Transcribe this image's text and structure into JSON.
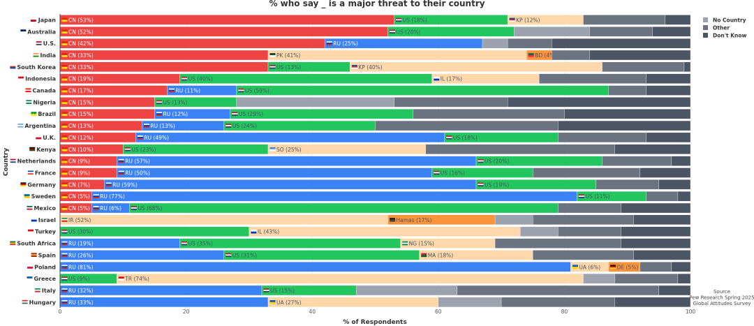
{
  "chart_data": {
    "type": "bar",
    "orientation": "horizontal",
    "stacked": true,
    "title": "% who say _ is a major threat to their country",
    "xlabel": "% of Respondents",
    "ylabel": "Country",
    "xlim": [
      0,
      100
    ],
    "x_ticks": [
      "0",
      "20",
      "40",
      "60",
      "80",
      "100"
    ],
    "grid": true,
    "legend": {
      "placement": "top-right",
      "entries": [
        {
          "name": "No Country",
          "color": "#9ca3af"
        },
        {
          "name": "Other",
          "color": "#6b7280"
        },
        {
          "name": "Don't Know",
          "color": "#4b5563"
        }
      ]
    },
    "threat_colors": {
      "CN": "#ef4444",
      "US": "#22c55e",
      "RU": "#3b82f6",
      "primary_other": "#fed7aa",
      "secondary_other": "#fb923c"
    },
    "rows": [
      {
        "country": "Japan",
        "flag": "jp",
        "segments": [
          {
            "label": "CN",
            "value": 53,
            "kind": "CN"
          },
          {
            "label": "US",
            "value": 18,
            "kind": "US"
          },
          {
            "label": "KP",
            "value": 12,
            "kind": "primary_other",
            "flag": "kp"
          },
          {
            "label": "Other",
            "value": 13,
            "kind": "other"
          },
          {
            "label": "Don't Know",
            "value": 4,
            "kind": "dk"
          }
        ]
      },
      {
        "country": "Australia",
        "flag": "au",
        "segments": [
          {
            "label": "CN",
            "value": 52,
            "kind": "CN"
          },
          {
            "label": "US",
            "value": 20,
            "kind": "US"
          },
          {
            "label": "No Country",
            "value": 12,
            "kind": "none"
          },
          {
            "label": "Other",
            "value": 10,
            "kind": "other"
          },
          {
            "label": "Don't Know",
            "value": 6,
            "kind": "dk"
          }
        ]
      },
      {
        "country": "U.S.",
        "flag": "us",
        "segments": [
          {
            "label": "CN",
            "value": 42,
            "kind": "CN"
          },
          {
            "label": "RU",
            "value": 25,
            "kind": "RU"
          },
          {
            "label": "No Country",
            "value": 4,
            "kind": "none"
          },
          {
            "label": "Other",
            "value": 7,
            "kind": "other"
          },
          {
            "label": "Don't Know",
            "value": 22,
            "kind": "dk"
          }
        ]
      },
      {
        "country": "India",
        "flag": "in",
        "segments": [
          {
            "label": "CN",
            "value": 33,
            "kind": "CN"
          },
          {
            "label": "PK",
            "value": 41,
            "kind": "primary_other",
            "flag": "pk"
          },
          {
            "label": "BD",
            "value": 4,
            "kind": "secondary_other",
            "flag": "bd"
          },
          {
            "label": "Other",
            "value": 6,
            "kind": "other"
          },
          {
            "label": "Don't Know",
            "value": 16,
            "kind": "dk"
          }
        ]
      },
      {
        "country": "South Korea",
        "flag": "kr",
        "segments": [
          {
            "label": "CN",
            "value": 33,
            "kind": "CN"
          },
          {
            "label": "US",
            "value": 13,
            "kind": "US"
          },
          {
            "label": "KP",
            "value": 40,
            "kind": "primary_other",
            "flag": "kp"
          },
          {
            "label": "Other",
            "value": 13,
            "kind": "other"
          },
          {
            "label": "Don't Know",
            "value": 1,
            "kind": "dk"
          }
        ]
      },
      {
        "country": "Indonesia",
        "flag": "id",
        "segments": [
          {
            "label": "CN",
            "value": 19,
            "kind": "CN"
          },
          {
            "label": "US",
            "value": 40,
            "kind": "US"
          },
          {
            "label": "IL",
            "value": 17,
            "kind": "primary_other",
            "flag": "il"
          },
          {
            "label": "Other",
            "value": 17,
            "kind": "other"
          },
          {
            "label": "Don't Know",
            "value": 7,
            "kind": "dk"
          }
        ]
      },
      {
        "country": "Canada",
        "flag": "ca",
        "segments": [
          {
            "label": "CN",
            "value": 17,
            "kind": "CN"
          },
          {
            "label": "RU",
            "value": 11,
            "kind": "RU"
          },
          {
            "label": "US",
            "value": 59,
            "kind": "US"
          },
          {
            "label": "Other",
            "value": 6,
            "kind": "other"
          },
          {
            "label": "Don't Know",
            "value": 7,
            "kind": "dk"
          }
        ]
      },
      {
        "country": "Nigeria",
        "flag": "ng",
        "segments": [
          {
            "label": "CN",
            "value": 15,
            "kind": "CN"
          },
          {
            "label": "US",
            "value": 13,
            "kind": "US"
          },
          {
            "label": "No Country",
            "value": 25,
            "kind": "none"
          },
          {
            "label": "Other",
            "value": 18,
            "kind": "other"
          },
          {
            "label": "Don't Know",
            "value": 29,
            "kind": "dk"
          }
        ]
      },
      {
        "country": "Brazil",
        "flag": "br",
        "segments": [
          {
            "label": "CN",
            "value": 15,
            "kind": "CN"
          },
          {
            "label": "RU",
            "value": 12,
            "kind": "RU"
          },
          {
            "label": "US",
            "value": 29,
            "kind": "US"
          },
          {
            "label": "Other",
            "value": 24,
            "kind": "other"
          },
          {
            "label": "Don't Know",
            "value": 20,
            "kind": "dk"
          }
        ]
      },
      {
        "country": "Argentina",
        "flag": "ar",
        "segments": [
          {
            "label": "CN",
            "value": 13,
            "kind": "CN"
          },
          {
            "label": "RU",
            "value": 13,
            "kind": "RU"
          },
          {
            "label": "US",
            "value": 24,
            "kind": "US"
          },
          {
            "label": "Other",
            "value": 29,
            "kind": "other"
          },
          {
            "label": "Don't Know",
            "value": 21,
            "kind": "dk"
          }
        ]
      },
      {
        "country": "U.K.",
        "flag": "gb",
        "segments": [
          {
            "label": "CN",
            "value": 12,
            "kind": "CN"
          },
          {
            "label": "RU",
            "value": 49,
            "kind": "RU"
          },
          {
            "label": "US",
            "value": 18,
            "kind": "US"
          },
          {
            "label": "Other",
            "value": 14,
            "kind": "other"
          },
          {
            "label": "Don't Know",
            "value": 7,
            "kind": "dk"
          }
        ]
      },
      {
        "country": "Kenya",
        "flag": "ke",
        "segments": [
          {
            "label": "CN",
            "value": 10,
            "kind": "CN"
          },
          {
            "label": "US",
            "value": 23,
            "kind": "US"
          },
          {
            "label": "SO",
            "value": 25,
            "kind": "primary_other",
            "flag": "so"
          },
          {
            "label": "Other",
            "value": 30,
            "kind": "other"
          },
          {
            "label": "Don't Know",
            "value": 12,
            "kind": "dk"
          }
        ]
      },
      {
        "country": "Netherlands",
        "flag": "nl",
        "segments": [
          {
            "label": "CN",
            "value": 9,
            "kind": "CN"
          },
          {
            "label": "RU",
            "value": 57,
            "kind": "RU"
          },
          {
            "label": "US",
            "value": 20,
            "kind": "US"
          },
          {
            "label": "Other",
            "value": 11,
            "kind": "other"
          },
          {
            "label": "Don't Know",
            "value": 3,
            "kind": "dk"
          }
        ]
      },
      {
        "country": "France",
        "flag": "fr",
        "segments": [
          {
            "label": "CN",
            "value": 9,
            "kind": "CN"
          },
          {
            "label": "RU",
            "value": 50,
            "kind": "RU"
          },
          {
            "label": "US",
            "value": 16,
            "kind": "US"
          },
          {
            "label": "Other",
            "value": 17,
            "kind": "other"
          },
          {
            "label": "Don't Know",
            "value": 8,
            "kind": "dk"
          }
        ]
      },
      {
        "country": "Germany",
        "flag": "de",
        "segments": [
          {
            "label": "CN",
            "value": 7,
            "kind": "CN"
          },
          {
            "label": "RU",
            "value": 59,
            "kind": "RU"
          },
          {
            "label": "US",
            "value": 19,
            "kind": "US"
          },
          {
            "label": "Other",
            "value": 10,
            "kind": "other"
          },
          {
            "label": "Don't Know",
            "value": 5,
            "kind": "dk"
          }
        ]
      },
      {
        "country": "Sweden",
        "flag": "se",
        "segments": [
          {
            "label": "CN",
            "value": 5,
            "kind": "CN"
          },
          {
            "label": "RU",
            "value": 77,
            "kind": "RU"
          },
          {
            "label": "US",
            "value": 11,
            "kind": "US"
          },
          {
            "label": "Other",
            "value": 5,
            "kind": "other"
          },
          {
            "label": "Don't Know",
            "value": 2,
            "kind": "dk"
          }
        ]
      },
      {
        "country": "Mexico",
        "flag": "mx",
        "segments": [
          {
            "label": "CN",
            "value": 5,
            "kind": "CN"
          },
          {
            "label": "RU",
            "value": 6,
            "kind": "RU"
          },
          {
            "label": "US",
            "value": 68,
            "kind": "US"
          },
          {
            "label": "Other",
            "value": 10,
            "kind": "other"
          },
          {
            "label": "Don't Know",
            "value": 11,
            "kind": "dk"
          }
        ]
      },
      {
        "country": "Israel",
        "flag": "il",
        "segments": [
          {
            "label": "IR",
            "value": 52,
            "kind": "primary_other",
            "flag": "ir"
          },
          {
            "label": "Hamas",
            "value": 17,
            "kind": "secondary_other",
            "flag": "hamas"
          },
          {
            "label": "No Country",
            "value": 6,
            "kind": "none"
          },
          {
            "label": "Other",
            "value": 16,
            "kind": "other"
          },
          {
            "label": "Don't Know",
            "value": 9,
            "kind": "dk"
          }
        ]
      },
      {
        "country": "Turkey",
        "flag": "tr",
        "segments": [
          {
            "label": "US",
            "value": 30,
            "kind": "US"
          },
          {
            "label": "IL",
            "value": 43,
            "kind": "primary_other",
            "flag": "il"
          },
          {
            "label": "No Country",
            "value": 6,
            "kind": "none"
          },
          {
            "label": "Other",
            "value": 10,
            "kind": "other"
          },
          {
            "label": "Don't Know",
            "value": 11,
            "kind": "dk"
          }
        ]
      },
      {
        "country": "South Africa",
        "flag": "za",
        "segments": [
          {
            "label": "RU",
            "value": 19,
            "kind": "RU"
          },
          {
            "label": "US",
            "value": 35,
            "kind": "US"
          },
          {
            "label": "NG",
            "value": 15,
            "kind": "primary_other",
            "flag": "ng"
          },
          {
            "label": "Other",
            "value": 20,
            "kind": "other"
          },
          {
            "label": "Don't Know",
            "value": 11,
            "kind": "dk"
          }
        ]
      },
      {
        "country": "Spain",
        "flag": "es",
        "segments": [
          {
            "label": "RU",
            "value": 26,
            "kind": "RU"
          },
          {
            "label": "US",
            "value": 31,
            "kind": "US"
          },
          {
            "label": "MA",
            "value": 18,
            "kind": "primary_other",
            "flag": "ma"
          },
          {
            "label": "Other",
            "value": 16,
            "kind": "other"
          },
          {
            "label": "Don't Know",
            "value": 9,
            "kind": "dk"
          }
        ]
      },
      {
        "country": "Poland",
        "flag": "pl",
        "segments": [
          {
            "label": "RU",
            "value": 81,
            "kind": "RU"
          },
          {
            "label": "UA",
            "value": 6,
            "kind": "primary_other",
            "flag": "ua"
          },
          {
            "label": "DE",
            "value": 5,
            "kind": "secondary_other",
            "flag": "de"
          },
          {
            "label": "Other",
            "value": 5,
            "kind": "other"
          },
          {
            "label": "Don't Know",
            "value": 3,
            "kind": "dk"
          }
        ]
      },
      {
        "country": "Greece",
        "flag": "gr",
        "segments": [
          {
            "label": "US",
            "value": 9,
            "kind": "US"
          },
          {
            "label": "TR",
            "value": 74,
            "kind": "primary_other",
            "flag": "tr"
          },
          {
            "label": "No Country",
            "value": 5,
            "kind": "none"
          },
          {
            "label": "Other",
            "value": 10,
            "kind": "other"
          },
          {
            "label": "Don't Know",
            "value": 2,
            "kind": "dk"
          }
        ]
      },
      {
        "country": "Italy",
        "flag": "it",
        "segments": [
          {
            "label": "RU",
            "value": 32,
            "kind": "RU"
          },
          {
            "label": "US",
            "value": 15,
            "kind": "US"
          },
          {
            "label": "No Country",
            "value": 16,
            "kind": "none"
          },
          {
            "label": "Other",
            "value": 32,
            "kind": "other"
          },
          {
            "label": "Don't Know",
            "value": 5,
            "kind": "dk"
          }
        ]
      },
      {
        "country": "Hungary",
        "flag": "hu",
        "segments": [
          {
            "label": "RU",
            "value": 33,
            "kind": "RU"
          },
          {
            "label": "UA",
            "value": 27,
            "kind": "primary_other",
            "flag": "ua"
          },
          {
            "label": "No Country",
            "value": 10,
            "kind": "none"
          },
          {
            "label": "Other",
            "value": 18,
            "kind": "other"
          },
          {
            "label": "Don't Know",
            "value": 12,
            "kind": "dk"
          }
        ]
      }
    ],
    "annotations": {
      "source_lines": [
        "Source",
        "Pew Research Spring 2025",
        "Global Attitudes Survey"
      ]
    }
  }
}
